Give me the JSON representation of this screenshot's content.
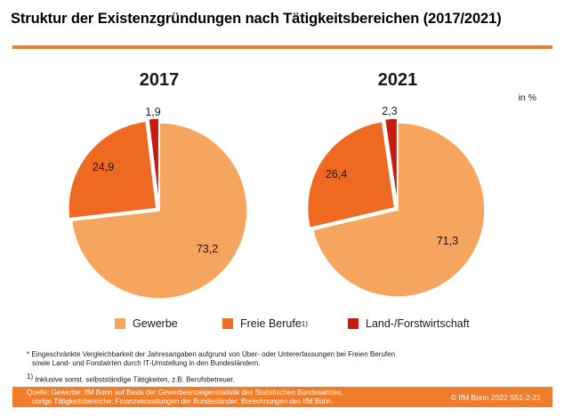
{
  "title": "Struktur der Existenzgründungen nach Tätigkeitsbereichen (2017/2021)",
  "unit_label": "in %",
  "colors": {
    "accent": "#f07d2a",
    "gewerbe": "#f5a55e",
    "freie_berufe": "#ee6a22",
    "land_forst": "#c51b10"
  },
  "chart_data": [
    {
      "type": "pie",
      "title": "2017",
      "categories": [
        "Gewerbe",
        "Freie Berufe",
        "Land-/Forstwirtschaft"
      ],
      "values": [
        73.2,
        24.9,
        1.9
      ],
      "labels": [
        "73,2",
        "24,9",
        "1,9"
      ]
    },
    {
      "type": "pie",
      "title": "2021",
      "categories": [
        "Gewerbe",
        "Freie Berufe",
        "Land-/Forstwirtschaft"
      ],
      "values": [
        71.3,
        26.4,
        2.3
      ],
      "labels": [
        "71,3",
        "26,4",
        "2,3"
      ]
    }
  ],
  "legend": [
    {
      "label": "Gewerbe",
      "sup": ""
    },
    {
      "label": "Freie Berufe",
      "sup": "1)"
    },
    {
      "label": "Land-/Forstwirtschaft",
      "sup": ""
    }
  ],
  "notes": {
    "line1": "* Eingeschränkte Vergleichbarkeit der Jahresangaben aufgrund von Über- oder Untererfassungen bei Freien Berufen",
    "line2": "sowie Land- und Forstwirten durch IT-Umstellung in den Bundesländern.",
    "footnote_mark": "1)",
    "footnote_text": "Inklusive sonst. selbstständige Tätigkeiten, z.B. Berufsbetreuer."
  },
  "footer": {
    "source_line1": "Quelle: Gewerbe: IfM Bonn auf Basis der Gewerbeanzeigenstatistik des Statistischen Bundesamtes,",
    "source_line2": "übrige Tätigkeitsbereiche: Finanzverwaltungen der Bundesländer; Berechnungen des IfM Bonn.",
    "copyright": "© IfM Bonn 2022  S51-2-21"
  }
}
